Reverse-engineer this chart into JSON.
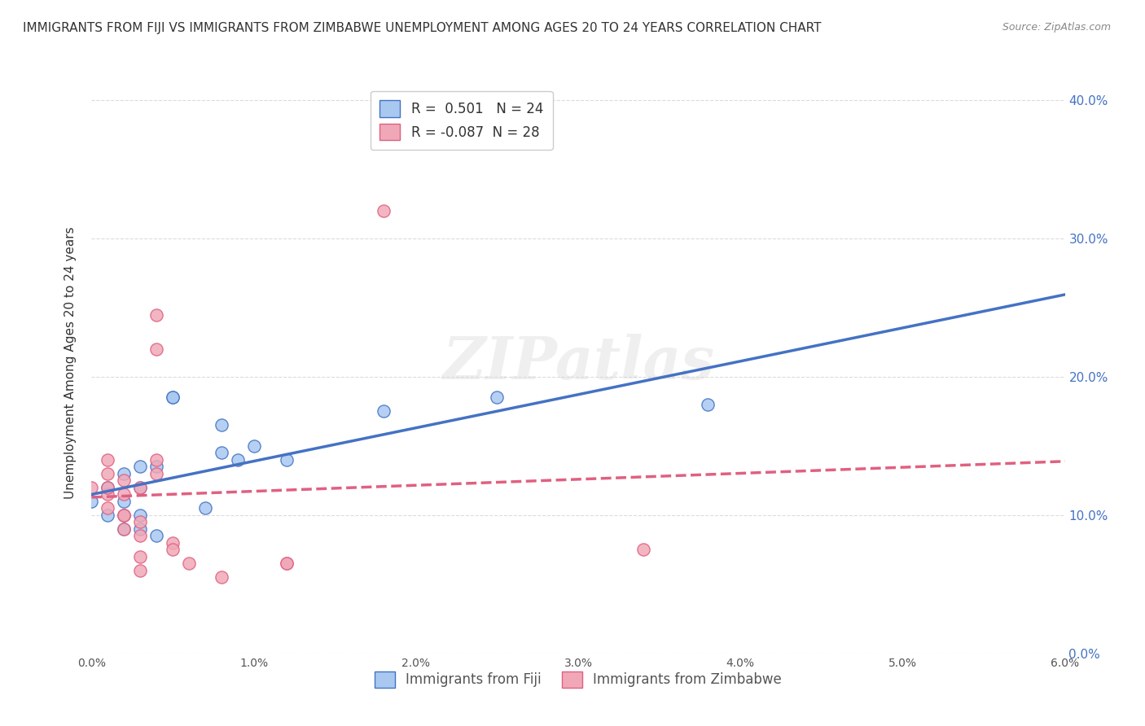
{
  "title": "IMMIGRANTS FROM FIJI VS IMMIGRANTS FROM ZIMBABWE UNEMPLOYMENT AMONG AGES 20 TO 24 YEARS CORRELATION CHART",
  "source": "Source: ZipAtlas.com",
  "ylabel": "Unemployment Among Ages 20 to 24 years",
  "xlabel": "",
  "xlim": [
    0.0,
    0.06
  ],
  "ylim": [
    0.0,
    0.42
  ],
  "yticks": [
    0.0,
    0.1,
    0.2,
    0.3,
    0.4
  ],
  "ytick_labels": [
    "0.0%",
    "10.0%",
    "20.0%",
    "30.0%",
    "40.0%"
  ],
  "xticks": [
    0.0,
    0.01,
    0.02,
    0.03,
    0.04,
    0.05,
    0.06
  ],
  "xtick_labels": [
    "0.0%",
    "1.0%",
    "2.0%",
    "3.0%",
    "4.0%",
    "5.0%",
    "6.0%"
  ],
  "fiji_R": 0.501,
  "fiji_N": 24,
  "zimbabwe_R": -0.087,
  "zimbabwe_N": 28,
  "fiji_color": "#a8c8f0",
  "zimbabwe_color": "#f0a8b8",
  "fiji_line_color": "#4472c4",
  "zimbabwe_line_color": "#e06080",
  "fiji_scatter": [
    [
      0.0,
      0.11
    ],
    [
      0.001,
      0.12
    ],
    [
      0.001,
      0.1
    ],
    [
      0.002,
      0.1
    ],
    [
      0.002,
      0.09
    ],
    [
      0.002,
      0.11
    ],
    [
      0.002,
      0.13
    ],
    [
      0.003,
      0.12
    ],
    [
      0.003,
      0.135
    ],
    [
      0.003,
      0.09
    ],
    [
      0.003,
      0.1
    ],
    [
      0.004,
      0.135
    ],
    [
      0.004,
      0.085
    ],
    [
      0.005,
      0.185
    ],
    [
      0.005,
      0.185
    ],
    [
      0.007,
      0.105
    ],
    [
      0.008,
      0.145
    ],
    [
      0.008,
      0.165
    ],
    [
      0.009,
      0.14
    ],
    [
      0.01,
      0.15
    ],
    [
      0.012,
      0.14
    ],
    [
      0.018,
      0.175
    ],
    [
      0.025,
      0.185
    ],
    [
      0.038,
      0.18
    ]
  ],
  "zimbabwe_scatter": [
    [
      0.0,
      0.12
    ],
    [
      0.001,
      0.115
    ],
    [
      0.001,
      0.105
    ],
    [
      0.001,
      0.12
    ],
    [
      0.001,
      0.13
    ],
    [
      0.001,
      0.14
    ],
    [
      0.002,
      0.115
    ],
    [
      0.002,
      0.125
    ],
    [
      0.002,
      0.09
    ],
    [
      0.002,
      0.1
    ],
    [
      0.002,
      0.1
    ],
    [
      0.003,
      0.12
    ],
    [
      0.003,
      0.095
    ],
    [
      0.003,
      0.085
    ],
    [
      0.003,
      0.07
    ],
    [
      0.003,
      0.06
    ],
    [
      0.004,
      0.13
    ],
    [
      0.004,
      0.14
    ],
    [
      0.004,
      0.22
    ],
    [
      0.004,
      0.245
    ],
    [
      0.005,
      0.08
    ],
    [
      0.005,
      0.075
    ],
    [
      0.006,
      0.065
    ],
    [
      0.008,
      0.055
    ],
    [
      0.012,
      0.065
    ],
    [
      0.012,
      0.065
    ],
    [
      0.018,
      0.32
    ],
    [
      0.034,
      0.075
    ]
  ],
  "watermark": "ZIPatlas",
  "background_color": "#ffffff",
  "grid_color": "#cccccc"
}
